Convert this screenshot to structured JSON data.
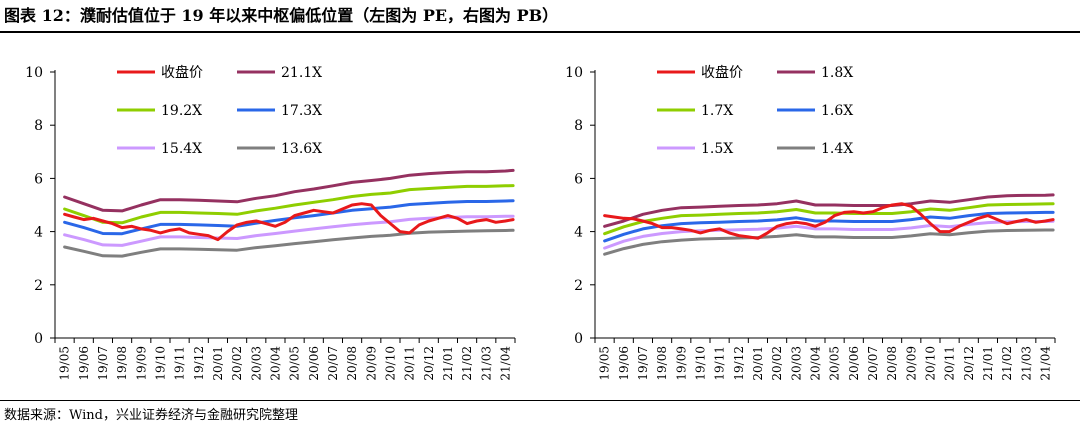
{
  "title": "图表 12：濮耐估值位于 19 年以来中枢偏低位置（左图为 PE，右图为 PB）",
  "source": "数据来源：Wind，兴业证券经济与金融研究院整理",
  "chart_data": [
    {
      "type": "line",
      "categories": [
        "19/05",
        "19/06",
        "19/07",
        "19/08",
        "19/09",
        "19/10",
        "19/11",
        "19/12",
        "20/01",
        "20/02",
        "20/03",
        "20/04",
        "20/05",
        "20/06",
        "20/07",
        "20/08",
        "20/09",
        "20/10",
        "20/11",
        "20/12",
        "21/01",
        "21/02",
        "21/03",
        "21/04"
      ],
      "ylim": [
        0,
        10
      ],
      "yticks": [
        0,
        2,
        4,
        6,
        8,
        10
      ],
      "grid": false,
      "legend": "top-left, 3 rows × 2 columns",
      "series": [
        {
          "name": "收盘价",
          "color": "#e8191b",
          "x": [
            0,
            0.5,
            1,
            1.5,
            2,
            2.5,
            3,
            3.5,
            4,
            4.5,
            5,
            5.5,
            6,
            6.5,
            7,
            7.5,
            8,
            8.5,
            9,
            9.5,
            10,
            10.5,
            11,
            11.5,
            12,
            12.5,
            13,
            13.5,
            14,
            14.5,
            15,
            15.5,
            16,
            16.5,
            17,
            17.5,
            18,
            18.5,
            19,
            19.5,
            20,
            20.5,
            21,
            21.5,
            22,
            22.5,
            23,
            23.4
          ],
          "values": [
            4.65,
            4.55,
            4.45,
            4.5,
            4.4,
            4.3,
            4.15,
            4.2,
            4.1,
            4.05,
            3.95,
            4.05,
            4.1,
            3.95,
            3.9,
            3.85,
            3.7,
            4.0,
            4.25,
            4.35,
            4.4,
            4.3,
            4.2,
            4.35,
            4.6,
            4.7,
            4.8,
            4.75,
            4.7,
            4.85,
            5.0,
            5.05,
            5.0,
            4.6,
            4.3,
            4.0,
            3.95,
            4.25,
            4.4,
            4.5,
            4.6,
            4.5,
            4.3,
            4.4,
            4.45,
            4.35,
            4.4,
            4.45
          ]
        },
        {
          "name": "21.1X",
          "color": "#953160",
          "x": [
            0,
            1,
            2,
            3,
            4,
            5,
            6,
            7,
            8,
            9,
            10,
            11,
            12,
            13,
            14,
            15,
            16,
            17,
            18,
            19,
            20,
            21,
            22,
            23,
            23.4
          ],
          "values": [
            5.3,
            5.05,
            4.8,
            4.78,
            5.0,
            5.2,
            5.2,
            5.18,
            5.15,
            5.12,
            5.25,
            5.35,
            5.5,
            5.6,
            5.72,
            5.85,
            5.92,
            6.0,
            6.12,
            6.18,
            6.22,
            6.25,
            6.25,
            6.28,
            6.3
          ]
        },
        {
          "name": "19.2X",
          "color": "#8fce00",
          "x": [
            0,
            1,
            2,
            3,
            4,
            5,
            6,
            7,
            8,
            9,
            10,
            11,
            12,
            13,
            14,
            15,
            16,
            17,
            18,
            19,
            20,
            21,
            22,
            23,
            23.4
          ],
          "values": [
            4.85,
            4.6,
            4.35,
            4.33,
            4.55,
            4.72,
            4.72,
            4.7,
            4.68,
            4.65,
            4.78,
            4.88,
            5.0,
            5.1,
            5.2,
            5.32,
            5.4,
            5.45,
            5.58,
            5.62,
            5.66,
            5.7,
            5.7,
            5.72,
            5.73
          ]
        },
        {
          "name": "17.3X",
          "color": "#2a67e8",
          "x": [
            0,
            1,
            2,
            3,
            4,
            5,
            6,
            7,
            8,
            9,
            10,
            11,
            12,
            13,
            14,
            15,
            16,
            17,
            18,
            19,
            20,
            21,
            22,
            23,
            23.4
          ],
          "values": [
            4.35,
            4.15,
            3.93,
            3.92,
            4.1,
            4.27,
            4.27,
            4.25,
            4.23,
            4.2,
            4.32,
            4.42,
            4.52,
            4.6,
            4.7,
            4.8,
            4.86,
            4.92,
            5.02,
            5.06,
            5.1,
            5.13,
            5.13,
            5.15,
            5.16
          ]
        },
        {
          "name": "15.4X",
          "color": "#cc99ff",
          "x": [
            0,
            1,
            2,
            3,
            4,
            5,
            6,
            7,
            8,
            9,
            10,
            11,
            12,
            13,
            14,
            15,
            16,
            17,
            18,
            19,
            20,
            21,
            22,
            23,
            23.4
          ],
          "values": [
            3.88,
            3.7,
            3.5,
            3.48,
            3.64,
            3.8,
            3.8,
            3.78,
            3.76,
            3.74,
            3.85,
            3.93,
            4.02,
            4.1,
            4.18,
            4.26,
            4.32,
            4.37,
            4.46,
            4.5,
            4.53,
            4.56,
            4.56,
            4.58,
            4.58
          ]
        },
        {
          "name": "13.6X",
          "color": "#7f7f7f",
          "x": [
            0,
            1,
            2,
            3,
            4,
            5,
            6,
            7,
            8,
            9,
            10,
            11,
            12,
            13,
            14,
            15,
            16,
            17,
            18,
            19,
            20,
            21,
            22,
            23,
            23.4
          ],
          "values": [
            3.42,
            3.26,
            3.09,
            3.08,
            3.22,
            3.35,
            3.35,
            3.34,
            3.32,
            3.3,
            3.4,
            3.47,
            3.55,
            3.62,
            3.69,
            3.76,
            3.82,
            3.86,
            3.94,
            3.98,
            4.0,
            4.02,
            4.03,
            4.04,
            4.05
          ]
        }
      ]
    },
    {
      "type": "line",
      "categories": [
        "19/05",
        "19/06",
        "19/07",
        "19/08",
        "19/09",
        "19/10",
        "19/11",
        "19/12",
        "20/01",
        "20/02",
        "20/03",
        "20/04",
        "20/05",
        "20/06",
        "20/07",
        "20/08",
        "20/09",
        "20/10",
        "20/11",
        "20/12",
        "21/01",
        "21/02",
        "21/03",
        "21/04"
      ],
      "ylim": [
        0,
        10
      ],
      "yticks": [
        0,
        2,
        4,
        6,
        8,
        10
      ],
      "grid": false,
      "legend": "top-left, 3 rows × 2 columns",
      "series": [
        {
          "name": "收盘价",
          "color": "#e8191b",
          "x": [
            0,
            0.5,
            1,
            1.5,
            2,
            2.5,
            3,
            3.5,
            4,
            4.5,
            5,
            5.5,
            6,
            6.5,
            7,
            7.5,
            8,
            8.5,
            9,
            9.5,
            10,
            10.5,
            11,
            11.5,
            12,
            12.5,
            13,
            13.5,
            14,
            14.5,
            15,
            15.5,
            16,
            16.5,
            17,
            17.5,
            18,
            18.5,
            19,
            19.5,
            20,
            20.5,
            21,
            21.5,
            22,
            22.5,
            23,
            23.4
          ],
          "values": [
            4.6,
            4.55,
            4.5,
            4.48,
            4.4,
            4.3,
            4.15,
            4.15,
            4.1,
            4.05,
            3.95,
            4.05,
            4.1,
            3.95,
            3.85,
            3.8,
            3.75,
            3.95,
            4.2,
            4.3,
            4.35,
            4.3,
            4.2,
            4.35,
            4.6,
            4.72,
            4.75,
            4.7,
            4.75,
            4.9,
            5.0,
            5.05,
            4.95,
            4.65,
            4.3,
            4.0,
            4.0,
            4.2,
            4.35,
            4.5,
            4.6,
            4.45,
            4.3,
            4.38,
            4.45,
            4.35,
            4.4,
            4.45
          ]
        },
        {
          "name": "1.8X",
          "color": "#953160",
          "x": [
            0,
            1,
            2,
            3,
            4,
            5,
            6,
            7,
            8,
            9,
            10,
            11,
            12,
            13,
            14,
            15,
            16,
            17,
            18,
            19,
            20,
            21,
            22,
            23,
            23.4
          ],
          "values": [
            4.2,
            4.4,
            4.65,
            4.8,
            4.9,
            4.92,
            4.95,
            4.98,
            5.0,
            5.05,
            5.15,
            5.0,
            5.0,
            4.98,
            4.98,
            4.98,
            5.05,
            5.15,
            5.1,
            5.2,
            5.3,
            5.35,
            5.36,
            5.37,
            5.38
          ]
        },
        {
          "name": "1.7X",
          "color": "#8fce00",
          "x": [
            0,
            1,
            2,
            3,
            4,
            5,
            6,
            7,
            8,
            9,
            10,
            11,
            12,
            13,
            14,
            15,
            16,
            17,
            18,
            19,
            20,
            21,
            22,
            23,
            23.4
          ],
          "values": [
            3.92,
            4.18,
            4.38,
            4.5,
            4.6,
            4.62,
            4.65,
            4.68,
            4.7,
            4.75,
            4.83,
            4.7,
            4.7,
            4.68,
            4.68,
            4.68,
            4.75,
            4.85,
            4.8,
            4.9,
            5.0,
            5.02,
            5.03,
            5.04,
            5.05
          ]
        },
        {
          "name": "1.6X",
          "color": "#2a67e8",
          "x": [
            0,
            1,
            2,
            3,
            4,
            5,
            6,
            7,
            8,
            9,
            10,
            11,
            12,
            13,
            14,
            15,
            16,
            17,
            18,
            19,
            20,
            21,
            22,
            23,
            23.4
          ],
          "values": [
            3.65,
            3.9,
            4.1,
            4.22,
            4.3,
            4.33,
            4.35,
            4.38,
            4.4,
            4.44,
            4.52,
            4.4,
            4.4,
            4.38,
            4.38,
            4.38,
            4.45,
            4.55,
            4.5,
            4.6,
            4.68,
            4.7,
            4.71,
            4.72,
            4.72
          ]
        },
        {
          "name": "1.5X",
          "color": "#cc99ff",
          "x": [
            0,
            1,
            2,
            3,
            4,
            5,
            6,
            7,
            8,
            9,
            10,
            11,
            12,
            13,
            14,
            15,
            16,
            17,
            18,
            19,
            20,
            21,
            22,
            23,
            23.4
          ],
          "values": [
            3.38,
            3.64,
            3.82,
            3.93,
            4.0,
            4.03,
            4.05,
            4.07,
            4.09,
            4.13,
            4.2,
            4.1,
            4.1,
            4.08,
            4.08,
            4.08,
            4.14,
            4.23,
            4.18,
            4.27,
            4.34,
            4.37,
            4.38,
            4.38,
            4.39
          ]
        },
        {
          "name": "1.4X",
          "color": "#7f7f7f",
          "x": [
            0,
            1,
            2,
            3,
            4,
            5,
            6,
            7,
            8,
            9,
            10,
            11,
            12,
            13,
            14,
            15,
            16,
            17,
            18,
            19,
            20,
            21,
            22,
            23,
            23.4
          ],
          "values": [
            3.15,
            3.36,
            3.52,
            3.62,
            3.68,
            3.72,
            3.74,
            3.76,
            3.78,
            3.82,
            3.88,
            3.8,
            3.8,
            3.78,
            3.78,
            3.78,
            3.84,
            3.92,
            3.88,
            3.96,
            4.02,
            4.04,
            4.05,
            4.06,
            4.06
          ]
        }
      ]
    }
  ]
}
